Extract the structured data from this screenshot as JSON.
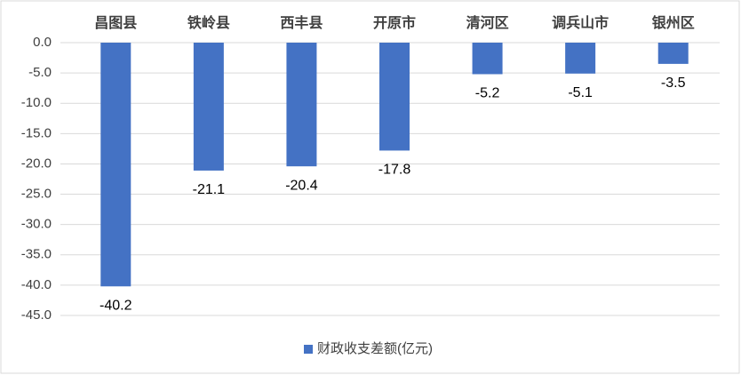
{
  "chart_data": {
    "type": "bar",
    "categories": [
      "昌图县",
      "铁岭县",
      "西丰县",
      "开原市",
      "清河区",
      "调兵山市",
      "银州区"
    ],
    "series": [
      {
        "name": "财政收支差额(亿元)",
        "color": "#4472c4",
        "values": [
          -40.2,
          -21.1,
          -20.4,
          -17.8,
          -5.2,
          -5.1,
          -3.5
        ]
      }
    ],
    "ylim": [
      -45,
      0
    ],
    "yticks": [
      {
        "value": 0,
        "label": "0.0"
      },
      {
        "value": -5,
        "label": "-5.0"
      },
      {
        "value": -10,
        "label": "-10.0"
      },
      {
        "value": -15,
        "label": "-15.0"
      },
      {
        "value": -20,
        "label": "-20.0"
      },
      {
        "value": -25,
        "label": "-25.0"
      },
      {
        "value": -30,
        "label": "-30.0"
      },
      {
        "value": -35,
        "label": "-35.0"
      },
      {
        "value": -40,
        "label": "-40.0"
      },
      {
        "value": -45,
        "label": "-45.0"
      }
    ],
    "grid": true,
    "legend": "bottom"
  }
}
